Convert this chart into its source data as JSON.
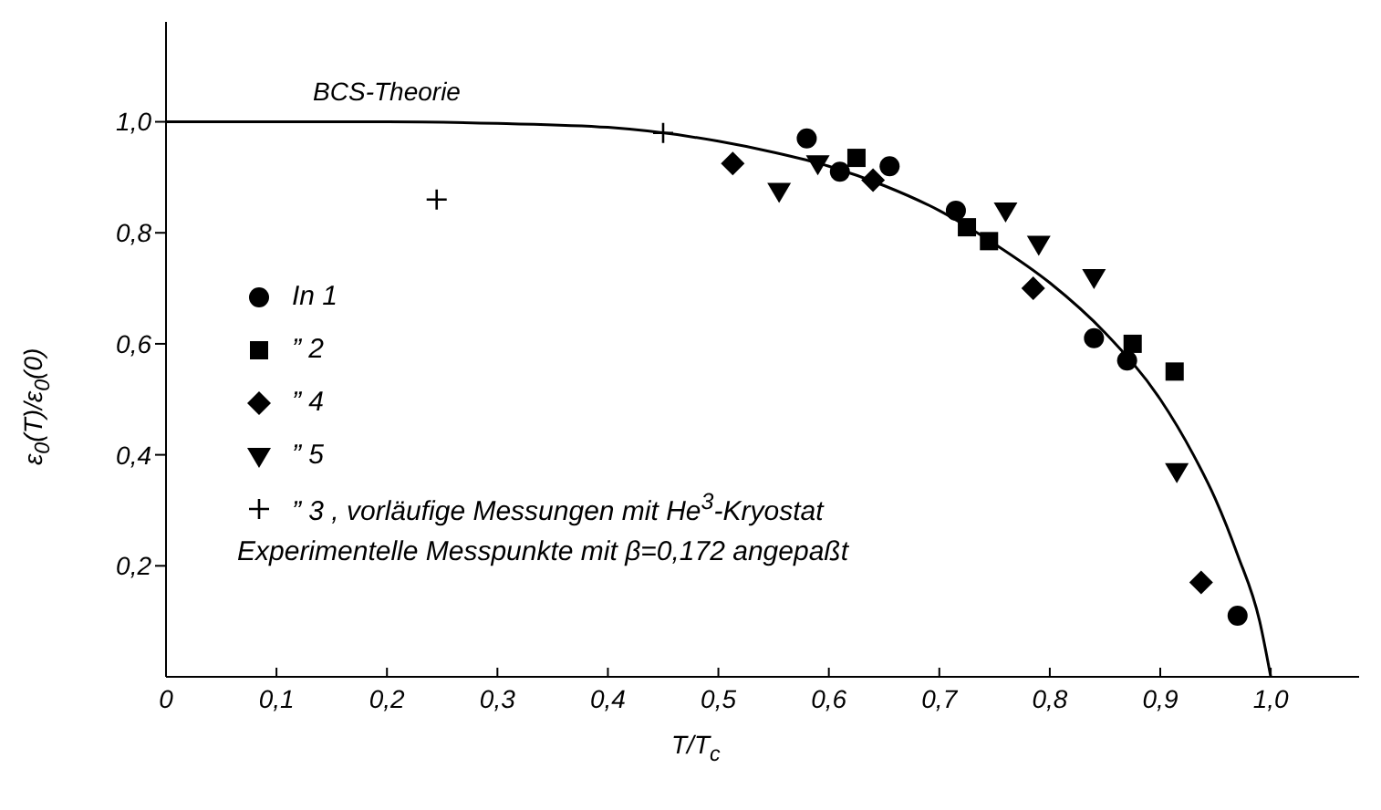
{
  "chart_data": {
    "type": "scatter",
    "xlabel": "T/T$_{c}$",
    "ylabel": "ε$_{0}$(T)/ε$_{0}$(0)",
    "xlim": [
      0,
      1.08
    ],
    "ylim": [
      0,
      1.18
    ],
    "xticks": [
      {
        "value": 0,
        "label": "0"
      },
      {
        "value": 0.1,
        "label": "0,1"
      },
      {
        "value": 0.2,
        "label": "0,2"
      },
      {
        "value": 0.3,
        "label": "0,3"
      },
      {
        "value": 0.4,
        "label": "0,4"
      },
      {
        "value": 0.5,
        "label": "0,5"
      },
      {
        "value": 0.6,
        "label": "0,6"
      },
      {
        "value": 0.7,
        "label": "0,7"
      },
      {
        "value": 0.8,
        "label": "0,8"
      },
      {
        "value": 0.9,
        "label": "0,9"
      },
      {
        "value": 1.0,
        "label": "1,0"
      }
    ],
    "yticks": [
      {
        "value": 0.2,
        "label": "0,2"
      },
      {
        "value": 0.4,
        "label": "0,4"
      },
      {
        "value": 0.6,
        "label": "0,6"
      },
      {
        "value": 0.8,
        "label": "0,8"
      },
      {
        "value": 1.0,
        "label": "1,0"
      }
    ],
    "grid": false,
    "legend": "left",
    "annotations": [
      "Experimentelle Messpunkte mit β=0,172 angepaßt"
    ],
    "series": [
      {
        "name": "BCS-Theorie",
        "type": "line",
        "color": "#000000",
        "marker": "none",
        "line_style": "solid",
        "x": [
          0,
          0.1,
          0.2,
          0.3,
          0.4,
          0.5,
          0.55,
          0.6,
          0.65,
          0.7,
          0.75,
          0.8,
          0.85,
          0.9,
          0.93,
          0.95,
          0.97,
          0.99,
          1.0
        ],
        "values": [
          1,
          1,
          1,
          0.997,
          0.99,
          0.965,
          0.945,
          0.92,
          0.885,
          0.84,
          0.78,
          0.71,
          0.62,
          0.5,
          0.4,
          0.32,
          0.22,
          0.1,
          0
        ]
      },
      {
        "name": "In 1",
        "color": "#000000",
        "marker": "circle",
        "x": [
          0.58,
          0.61,
          0.655,
          0.715,
          0.84,
          0.87,
          0.97
        ],
        "values": [
          0.97,
          0.91,
          0.92,
          0.84,
          0.61,
          0.57,
          0.11
        ]
      },
      {
        "name": "” 2",
        "color": "#000000",
        "marker": "square",
        "x": [
          0.625,
          0.725,
          0.745,
          0.875,
          0.913
        ],
        "values": [
          0.935,
          0.81,
          0.785,
          0.6,
          0.55
        ]
      },
      {
        "name": "” 4",
        "color": "#000000",
        "marker": "diamond",
        "x": [
          0.513,
          0.64,
          0.785,
          0.937
        ],
        "values": [
          0.925,
          0.895,
          0.7,
          0.17
        ]
      },
      {
        "name": "” 5",
        "color": "#000000",
        "marker": "triangle",
        "x": [
          0.555,
          0.59,
          0.76,
          0.79,
          0.84,
          0.915
        ],
        "values": [
          0.875,
          0.925,
          0.84,
          0.78,
          0.72,
          0.37
        ]
      },
      {
        "name": "” 3 , vorläufige Messungen mit He$^{3}$-Kryostat",
        "color": "#000000",
        "marker": "cross",
        "x": [
          0.245,
          0.45
        ],
        "values": [
          0.86,
          0.98
        ]
      }
    ]
  }
}
